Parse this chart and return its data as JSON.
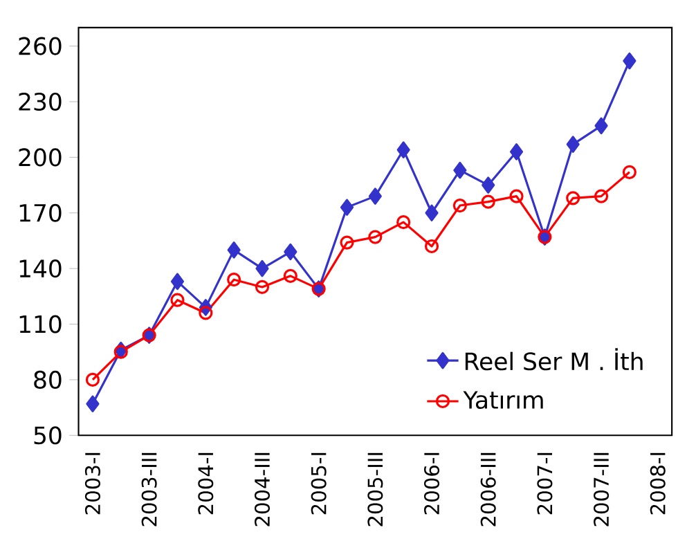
{
  "chart_data": {
    "type": "line",
    "categories": [
      "2003-I",
      null,
      "2003-III",
      null,
      "2004-I",
      null,
      "2004-III",
      null,
      "2005-I",
      null,
      "2005-III",
      null,
      "2006-I",
      null,
      "2006-III",
      null,
      "2007-I",
      null,
      "2007-III",
      null,
      "2008-I"
    ],
    "series": [
      {
        "name": "Reel Ser M . İth",
        "color": "#3333cc",
        "marker": "diamond",
        "values": [
          67,
          96,
          104,
          133,
          119,
          150,
          140,
          149,
          129,
          173,
          179,
          204,
          170,
          193,
          185,
          203,
          157,
          207,
          217,
          252,
          null
        ]
      },
      {
        "name": "Yatırım",
        "color": "#ff0000",
        "marker": "circle",
        "values": [
          80,
          95,
          104,
          123,
          116,
          134,
          130,
          136,
          129,
          154,
          157,
          165,
          152,
          174,
          176,
          179,
          157,
          178,
          179,
          192,
          null
        ]
      }
    ],
    "ylim": [
      50,
      270
    ],
    "yticks": [
      50,
      80,
      110,
      140,
      170,
      200,
      230,
      260
    ],
    "grid": false,
    "legend": "bottom right",
    "line_style": "solid"
  }
}
